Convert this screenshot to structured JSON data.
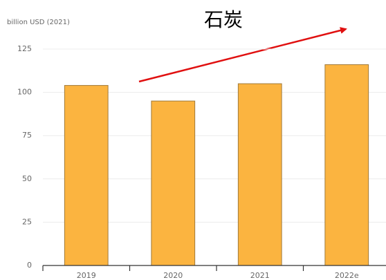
{
  "chart_data": {
    "type": "bar",
    "title": "石炭",
    "y_axis_label": "billion USD (2021)",
    "categories": [
      "2019",
      "2020",
      "2021",
      "2022e"
    ],
    "values": [
      104,
      95,
      105,
      116
    ],
    "color": "#fbb440",
    "ylim": [
      0,
      125
    ],
    "yticks": [
      0,
      25,
      50,
      75,
      100,
      125
    ],
    "grid": true
  }
}
